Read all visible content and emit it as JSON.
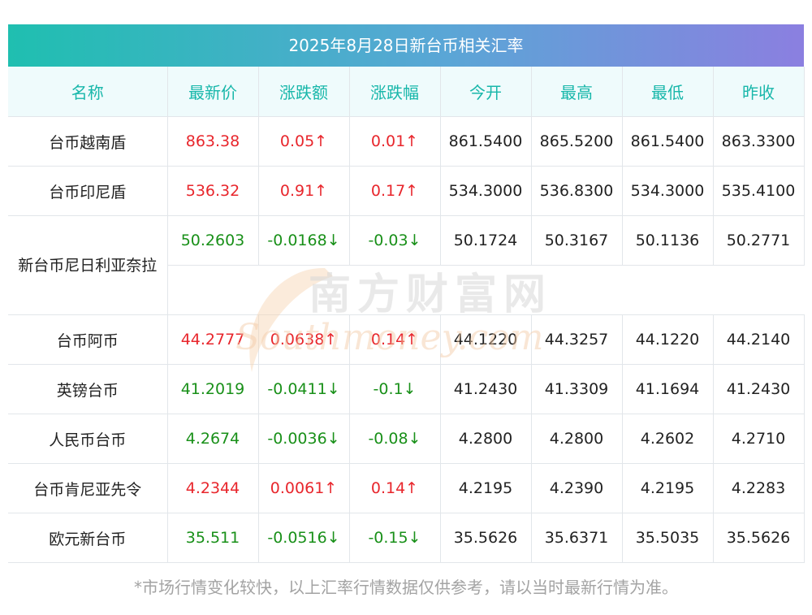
{
  "header": {
    "title": "2025年8月28日新台币相关汇率"
  },
  "colors": {
    "up": "#e8262c",
    "down": "#199019",
    "header_text": "#18b7aa"
  },
  "table": {
    "columns": [
      "名称",
      "最新价",
      "涨跌额",
      "涨跌幅",
      "今开",
      "最高",
      "最低",
      "昨收"
    ],
    "rows": [
      {
        "name": "台币越南盾",
        "latest": "863.38",
        "change": "0.05↑",
        "pct": "0.01↑",
        "open": "861.5400",
        "high": "865.5200",
        "low": "861.5400",
        "prev": "863.3300",
        "dir": "up"
      },
      {
        "name": "台币印尼盾",
        "latest": "536.32",
        "change": "0.91↑",
        "pct": "0.17↑",
        "open": "534.3000",
        "high": "536.8300",
        "low": "534.3000",
        "prev": "535.4100",
        "dir": "up"
      },
      {
        "name": "新台币尼日利亚奈拉",
        "latest": "50.2603",
        "change": "-0.0168↓",
        "pct": "-0.03↓",
        "open": "50.1724",
        "high": "50.3167",
        "low": "50.1136",
        "prev": "50.2771",
        "dir": "down"
      },
      {
        "name": "台币阿币",
        "latest": "44.2777",
        "change": "0.0638↑",
        "pct": "0.14↑",
        "open": "44.1220",
        "high": "44.3257",
        "low": "44.1220",
        "prev": "44.2140",
        "dir": "up"
      },
      {
        "name": "英镑台币",
        "latest": "41.2019",
        "change": "-0.0411↓",
        "pct": "-0.1↓",
        "open": "41.2430",
        "high": "41.3309",
        "low": "41.1694",
        "prev": "41.2430",
        "dir": "down"
      },
      {
        "name": "人民币台币",
        "latest": "4.2674",
        "change": "-0.0036↓",
        "pct": "-0.08↓",
        "open": "4.2800",
        "high": "4.2800",
        "low": "4.2602",
        "prev": "4.2710",
        "dir": "down"
      },
      {
        "name": "台币肯尼亚先令",
        "latest": "4.2344",
        "change": "0.0061↑",
        "pct": "0.14↑",
        "open": "4.2195",
        "high": "4.2390",
        "low": "4.2195",
        "prev": "4.2283",
        "dir": "up"
      },
      {
        "name": "欧元新台币",
        "latest": "35.511",
        "change": "-0.0516↓",
        "pct": "-0.15↓",
        "open": "35.5626",
        "high": "35.6371",
        "low": "35.5035",
        "prev": "35.5626",
        "dir": "down"
      }
    ]
  },
  "watermark": {
    "text_cn": "南方财富网",
    "text_en": "Southmoney.com"
  },
  "footer": {
    "note": "*市场行情变化较快，以上汇率行情数据仅供参考，请以当时最新行情为准。"
  }
}
